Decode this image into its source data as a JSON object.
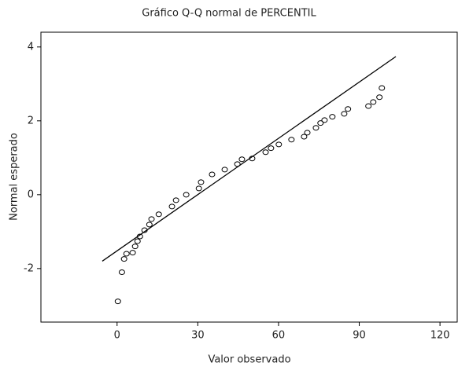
{
  "chart_data": {
    "type": "scatter",
    "title": "Gráfico Q-Q normal de PERCENTIL",
    "xlabel": "Valor observado",
    "ylabel": "Normal esperado",
    "x": [
      0.3,
      1.8,
      2.6,
      3.5,
      5.8,
      6.7,
      7.6,
      8.5,
      10.2,
      12,
      12.8,
      15.5,
      20.4,
      21.9,
      25.7,
      30.4,
      31.2,
      35.3,
      40,
      44.7,
      46.4,
      50.2,
      55.2,
      57.2,
      60.1,
      64.8,
      69.5,
      70.7,
      73.9,
      75.6,
      77.1,
      80,
      84.4,
      85.8,
      93.4,
      95.2,
      97.5,
      98.4
    ],
    "y": [
      -2.89,
      -2.1,
      -1.74,
      -1.6,
      -1.57,
      -1.4,
      -1.26,
      -1.13,
      -0.96,
      -0.81,
      -0.66,
      -0.53,
      -0.32,
      -0.15,
      0,
      0.17,
      0.34,
      0.55,
      0.68,
      0.83,
      0.96,
      0.98,
      1.15,
      1.26,
      1.36,
      1.49,
      1.57,
      1.68,
      1.81,
      1.94,
      2.02,
      2.11,
      2.19,
      2.32,
      2.4,
      2.51,
      2.64,
      2.89
    ],
    "reference_line": {
      "x": [
        -5.5,
        103.6
      ],
      "y": [
        -1.8,
        3.74
      ]
    },
    "color": "#000000",
    "xlim": [
      -28.3,
      126.4
    ],
    "ylim": [
      -3.45,
      4.4
    ],
    "xticks": [
      0,
      30,
      60,
      90,
      120
    ],
    "yticks": [
      -2,
      0,
      2,
      4
    ]
  }
}
